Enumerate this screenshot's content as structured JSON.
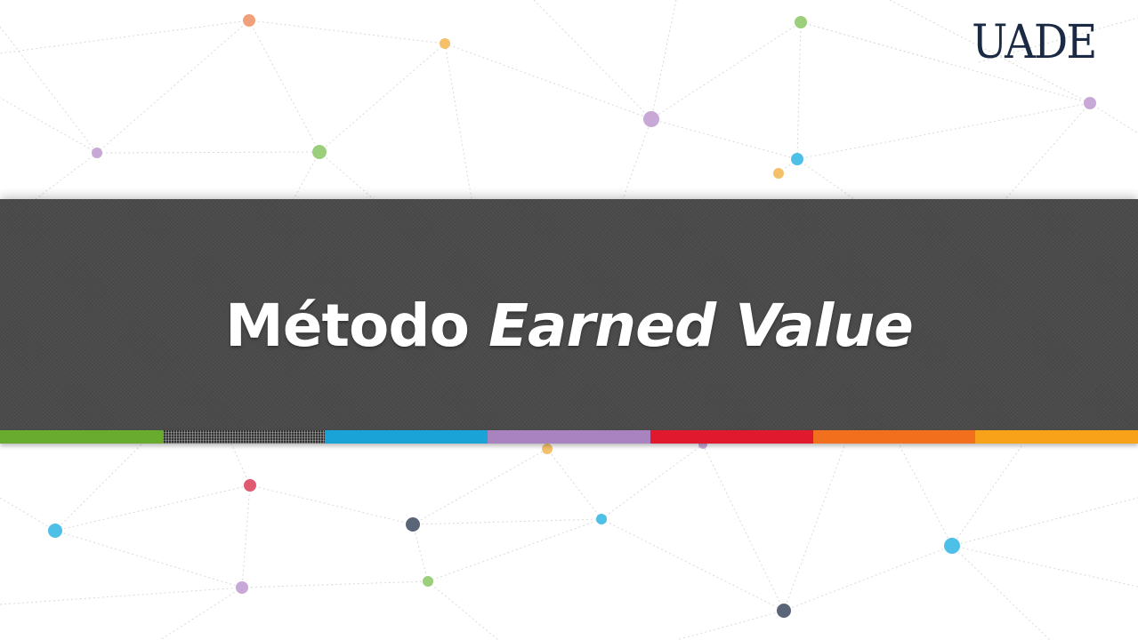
{
  "slide": {
    "logo_text": "UADE",
    "title_part1": "Método",
    "title_part2": "Earned Value"
  },
  "colors": {
    "band": "#4a4a4a",
    "title_text": "#ffffff",
    "logo": "#1b2a44",
    "stripe": [
      "#69ab2f",
      "#333333",
      "#1aa3d6",
      "#a983bf",
      "#e0192e",
      "#f26f1e",
      "#f8a21a"
    ],
    "dots": [
      "#f0a07a",
      "#f4c06a",
      "#9ccf7c",
      "#c8a8d6",
      "#4ec0e8",
      "#e05a72",
      "#5a6678"
    ]
  }
}
